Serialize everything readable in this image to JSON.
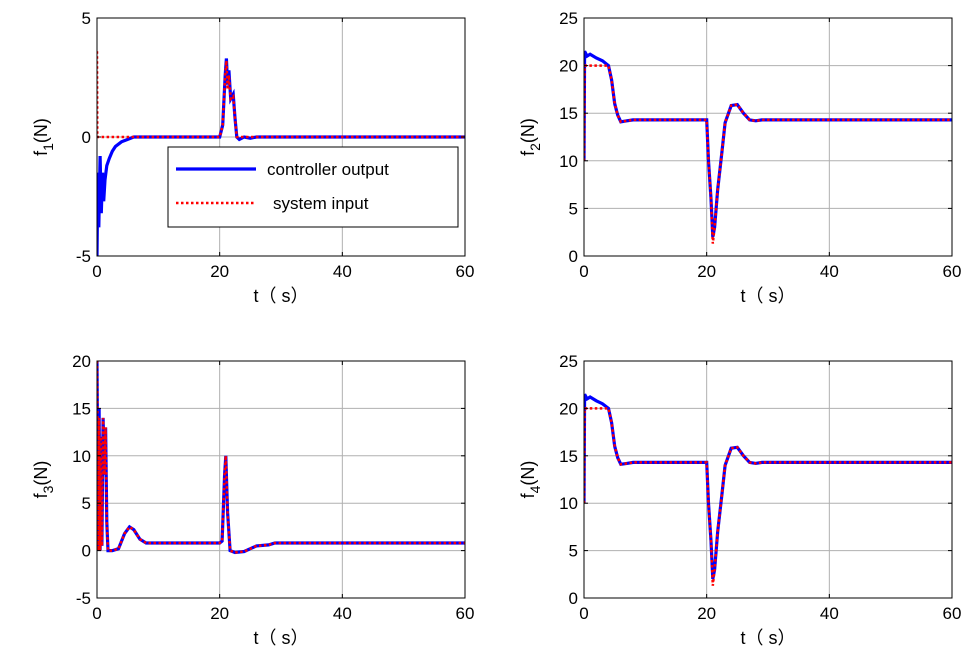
{
  "colors": {
    "controller": "#0000ff",
    "input": "#ff0000",
    "grid": "#b0b0b0",
    "axes": "#000000"
  },
  "chart_data": [
    {
      "type": "line",
      "ylabel": "f1(N)",
      "ylabel_main": "f",
      "ylabel_sub": "1",
      "ylabel_unit": "(N)",
      "xlabel": "t（ s）",
      "xlim": [
        0,
        60
      ],
      "ylim": [
        -5,
        5
      ],
      "xticks": [
        "0",
        "20",
        "40",
        "60"
      ],
      "yticks": [
        "-5",
        "0",
        "5"
      ],
      "grid": true,
      "legend": {
        "placement": "center-right",
        "entries": [
          "controller output",
          "system input"
        ]
      },
      "series": [
        {
          "name": "controller output",
          "style": "solid",
          "points": [
            [
              0,
              -5
            ],
            [
              0.15,
              -1.5
            ],
            [
              0.3,
              -3.8
            ],
            [
              0.5,
              -0.8
            ],
            [
              0.7,
              -3.2
            ],
            [
              0.9,
              -1.5
            ],
            [
              1.1,
              -2.7
            ],
            [
              1.3,
              -1.8
            ],
            [
              1.6,
              -1.2
            ],
            [
              2,
              -0.9
            ],
            [
              2.5,
              -0.6
            ],
            [
              3,
              -0.4
            ],
            [
              4,
              -0.2
            ],
            [
              5,
              -0.1
            ],
            [
              6,
              0
            ],
            [
              20,
              0
            ],
            [
              20.5,
              0.5
            ],
            [
              20.9,
              2.6
            ],
            [
              21.1,
              3.3
            ],
            [
              21.3,
              2.2
            ],
            [
              21.5,
              2.8
            ],
            [
              21.8,
              1.6
            ],
            [
              22.2,
              1.8
            ],
            [
              22.5,
              0.8
            ],
            [
              22.8,
              0
            ],
            [
              23.2,
              -0.1
            ],
            [
              24,
              0
            ],
            [
              25,
              -0.05
            ],
            [
              26,
              0
            ],
            [
              60,
              0
            ]
          ]
        },
        {
          "name": "system input",
          "style": "dotted",
          "points": [
            [
              0,
              3.6
            ],
            [
              0.05,
              0
            ],
            [
              20,
              0
            ],
            [
              20.5,
              0.5
            ],
            [
              20.9,
              2.6
            ],
            [
              21.1,
              3.2
            ],
            [
              21.3,
              2.0
            ],
            [
              21.5,
              2.6
            ],
            [
              21.8,
              1.6
            ],
            [
              22.2,
              1.7
            ],
            [
              22.5,
              0.8
            ],
            [
              22.8,
              0
            ],
            [
              60,
              0
            ]
          ]
        }
      ]
    },
    {
      "type": "line",
      "ylabel": "f2(N)",
      "ylabel_main": "f",
      "ylabel_sub": "2",
      "ylabel_unit": "(N)",
      "xlabel": "t（ s）",
      "xlim": [
        0,
        60
      ],
      "ylim": [
        0,
        25
      ],
      "xticks": [
        "0",
        "20",
        "40",
        "60"
      ],
      "yticks": [
        "0",
        "5",
        "10",
        "15",
        "20",
        "25"
      ],
      "grid": true,
      "series": [
        {
          "name": "controller output",
          "style": "solid",
          "points": [
            [
              0,
              10
            ],
            [
              0.1,
              21.5
            ],
            [
              0.5,
              21
            ],
            [
              1,
              21.2
            ],
            [
              2,
              20.8
            ],
            [
              3,
              20.5
            ],
            [
              4,
              20
            ],
            [
              4.5,
              18.5
            ],
            [
              5,
              16
            ],
            [
              5.5,
              14.8
            ],
            [
              6,
              14.1
            ],
            [
              7,
              14.2
            ],
            [
              8,
              14.3
            ],
            [
              20,
              14.3
            ],
            [
              20.3,
              10
            ],
            [
              20.7,
              6
            ],
            [
              21,
              2
            ],
            [
              21.3,
              3
            ],
            [
              21.8,
              7
            ],
            [
              22.5,
              11
            ],
            [
              23,
              14
            ],
            [
              24,
              15.8
            ],
            [
              25,
              15.9
            ],
            [
              26,
              15
            ],
            [
              27,
              14.3
            ],
            [
              28,
              14.2
            ],
            [
              29,
              14.3
            ],
            [
              60,
              14.3
            ]
          ]
        },
        {
          "name": "system input",
          "style": "dotted",
          "points": [
            [
              0,
              10
            ],
            [
              0.1,
              20
            ],
            [
              4,
              20
            ],
            [
              4.5,
              18.5
            ],
            [
              5,
              16
            ],
            [
              5.5,
              14.8
            ],
            [
              6,
              14.1
            ],
            [
              7,
              14.2
            ],
            [
              8,
              14.3
            ],
            [
              20,
              14.3
            ],
            [
              20.3,
              10
            ],
            [
              20.7,
              6
            ],
            [
              21,
              1.3
            ],
            [
              21.3,
              3
            ],
            [
              21.8,
              7
            ],
            [
              22.5,
              11
            ],
            [
              23,
              14
            ],
            [
              24,
              15.8
            ],
            [
              25,
              15.9
            ],
            [
              26,
              15
            ],
            [
              27,
              14.3
            ],
            [
              28,
              14.2
            ],
            [
              29,
              14.3
            ],
            [
              60,
              14.3
            ]
          ]
        }
      ]
    },
    {
      "type": "line",
      "ylabel": "f3(N)",
      "ylabel_main": "f",
      "ylabel_sub": "3",
      "ylabel_unit": "(N)",
      "xlabel": "t（ s）",
      "xlim": [
        0,
        60
      ],
      "ylim": [
        -5,
        20
      ],
      "xticks": [
        "0",
        "20",
        "40",
        "60"
      ],
      "yticks": [
        "-5",
        "0",
        "5",
        "10",
        "15",
        "20"
      ],
      "grid": true,
      "series": [
        {
          "name": "controller output",
          "style": "solid",
          "points": [
            [
              0,
              20
            ],
            [
              0.2,
              0
            ],
            [
              0.35,
              15
            ],
            [
              0.5,
              0
            ],
            [
              0.65,
              12
            ],
            [
              0.8,
              0.5
            ],
            [
              1,
              14
            ],
            [
              1.2,
              8
            ],
            [
              1.4,
              13
            ],
            [
              1.6,
              3
            ],
            [
              1.8,
              0
            ],
            [
              2.5,
              0
            ],
            [
              3.5,
              0.2
            ],
            [
              4.5,
              1.8
            ],
            [
              5.3,
              2.5
            ],
            [
              6,
              2.2
            ],
            [
              7,
              1.2
            ],
            [
              8,
              0.8
            ],
            [
              10,
              0.8
            ],
            [
              20,
              0.8
            ],
            [
              20.4,
              1
            ],
            [
              20.8,
              8
            ],
            [
              21,
              10
            ],
            [
              21.3,
              4
            ],
            [
              21.7,
              0
            ],
            [
              22.5,
              -0.2
            ],
            [
              24,
              -0.1
            ],
            [
              25,
              0.2
            ],
            [
              26,
              0.5
            ],
            [
              28,
              0.6
            ],
            [
              29,
              0.8
            ],
            [
              60,
              0.8
            ]
          ]
        },
        {
          "name": "system input",
          "style": "dotted",
          "points": [
            [
              0,
              20
            ],
            [
              0.2,
              0
            ],
            [
              0.35,
              14
            ],
            [
              0.5,
              0
            ],
            [
              0.65,
              12
            ],
            [
              0.8,
              0.5
            ],
            [
              1,
              14
            ],
            [
              1.2,
              8
            ],
            [
              1.4,
              13
            ],
            [
              1.6,
              3
            ],
            [
              1.8,
              0
            ],
            [
              2.5,
              0
            ],
            [
              3.5,
              0.2
            ],
            [
              4.5,
              1.8
            ],
            [
              5.3,
              2.5
            ],
            [
              6,
              2.2
            ],
            [
              7,
              1.2
            ],
            [
              8,
              0.8
            ],
            [
              20,
              0.8
            ],
            [
              20.4,
              1
            ],
            [
              20.8,
              8
            ],
            [
              21,
              10
            ],
            [
              21.3,
              4
            ],
            [
              21.7,
              0
            ],
            [
              22.5,
              -0.2
            ],
            [
              24,
              -0.1
            ],
            [
              25,
              0.2
            ],
            [
              26,
              0.5
            ],
            [
              28,
              0.6
            ],
            [
              29,
              0.8
            ],
            [
              60,
              0.8
            ]
          ]
        }
      ]
    },
    {
      "type": "line",
      "ylabel": "f4(N)",
      "ylabel_main": "f",
      "ylabel_sub": "4",
      "ylabel_unit": "(N)",
      "xlabel": "t（ s）",
      "xlim": [
        0,
        60
      ],
      "ylim": [
        0,
        25
      ],
      "xticks": [
        "0",
        "20",
        "40",
        "60"
      ],
      "yticks": [
        "0",
        "5",
        "10",
        "15",
        "20",
        "25"
      ],
      "grid": true,
      "series": [
        {
          "name": "controller output",
          "style": "solid",
          "points": [
            [
              0,
              10
            ],
            [
              0.1,
              21.5
            ],
            [
              0.5,
              21
            ],
            [
              1,
              21.2
            ],
            [
              2,
              20.8
            ],
            [
              3,
              20.5
            ],
            [
              4,
              20
            ],
            [
              4.5,
              18.5
            ],
            [
              5,
              16
            ],
            [
              5.5,
              14.8
            ],
            [
              6,
              14.1
            ],
            [
              7,
              14.2
            ],
            [
              8,
              14.3
            ],
            [
              20,
              14.3
            ],
            [
              20.3,
              10
            ],
            [
              20.7,
              6
            ],
            [
              21,
              2
            ],
            [
              21.3,
              3
            ],
            [
              21.8,
              7
            ],
            [
              22.5,
              11
            ],
            [
              23,
              14
            ],
            [
              24,
              15.8
            ],
            [
              25,
              15.9
            ],
            [
              26,
              15
            ],
            [
              27,
              14.3
            ],
            [
              28,
              14.2
            ],
            [
              29,
              14.3
            ],
            [
              60,
              14.3
            ]
          ]
        },
        {
          "name": "system input",
          "style": "dotted",
          "points": [
            [
              0,
              10
            ],
            [
              0.1,
              20
            ],
            [
              4,
              20
            ],
            [
              4.5,
              18.5
            ],
            [
              5,
              16
            ],
            [
              5.5,
              14.8
            ],
            [
              6,
              14.1
            ],
            [
              7,
              14.2
            ],
            [
              8,
              14.3
            ],
            [
              20,
              14.3
            ],
            [
              20.3,
              10
            ],
            [
              20.7,
              6
            ],
            [
              21,
              1.3
            ],
            [
              21.3,
              3
            ],
            [
              21.8,
              7
            ],
            [
              22.5,
              11
            ],
            [
              23,
              14
            ],
            [
              24,
              15.8
            ],
            [
              25,
              15.9
            ],
            [
              26,
              15
            ],
            [
              27,
              14.3
            ],
            [
              28,
              14.2
            ],
            [
              29,
              14.3
            ],
            [
              60,
              14.3
            ]
          ]
        }
      ]
    }
  ]
}
